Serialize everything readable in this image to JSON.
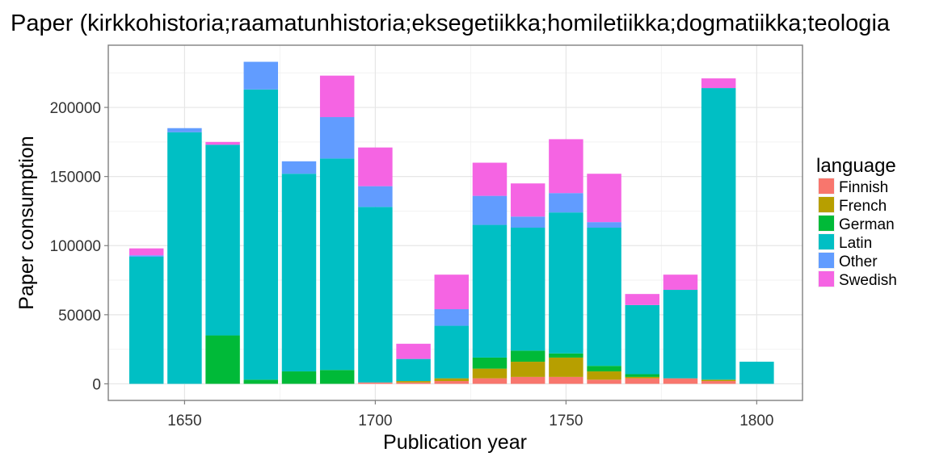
{
  "chart_data": {
    "type": "bar",
    "stacked": true,
    "title": "Paper (kirkkohistoria;raamatunhistoria;eksegetiikka;homiletiikka;dogmatiikka;teologia",
    "xlabel": "Publication year",
    "ylabel": "Paper consumption",
    "xlim": [
      1630,
      1812
    ],
    "ylim": [
      -12000,
      245000
    ],
    "x_ticks": [
      1650,
      1700,
      1750,
      1800
    ],
    "x_tick_labels": [
      "1650",
      "1700",
      "1750",
      "1800"
    ],
    "y_ticks": [
      0,
      50000,
      100000,
      150000,
      200000
    ],
    "y_tick_labels": [
      "0",
      "50000",
      "100000",
      "150000",
      "200000"
    ],
    "grid": true,
    "legend": {
      "title": "language",
      "position": "right"
    },
    "x": [
      1640,
      1650,
      1660,
      1670,
      1680,
      1690,
      1700,
      1710,
      1720,
      1730,
      1740,
      1750,
      1760,
      1770,
      1780,
      1790,
      1800
    ],
    "series": [
      {
        "name": "Finnish",
        "color": "#F8766D",
        "values": [
          0,
          0,
          0,
          0,
          0,
          0,
          1000,
          1000,
          2000,
          4000,
          5000,
          5000,
          3000,
          4000,
          4000,
          2000,
          0
        ]
      },
      {
        "name": "French",
        "color": "#B79F00",
        "values": [
          0,
          0,
          0,
          0,
          0,
          0,
          0,
          1000,
          2000,
          7000,
          11000,
          14000,
          6000,
          1000,
          0,
          1000,
          0
        ]
      },
      {
        "name": "German",
        "color": "#00BA38",
        "values": [
          0,
          0,
          35000,
          3000,
          9000,
          10000,
          0,
          0,
          0,
          8000,
          8000,
          3000,
          4000,
          2000,
          0,
          0,
          0
        ]
      },
      {
        "name": "Latin",
        "color": "#00BFC4",
        "values": [
          92000,
          182000,
          138000,
          210000,
          143000,
          153000,
          127000,
          16000,
          38000,
          96000,
          89000,
          102000,
          100000,
          50000,
          64000,
          211000,
          16000
        ]
      },
      {
        "name": "Other",
        "color": "#619CFF",
        "values": [
          1000,
          3000,
          0,
          20000,
          9000,
          30000,
          15000,
          0,
          12000,
          21000,
          8000,
          14000,
          4000,
          0,
          0,
          0,
          0
        ]
      },
      {
        "name": "Swedish",
        "color": "#F564E3",
        "values": [
          5000,
          0,
          2000,
          0,
          0,
          30000,
          28000,
          11000,
          25000,
          24000,
          24000,
          39000,
          35000,
          8000,
          11000,
          7000,
          0
        ]
      }
    ]
  }
}
